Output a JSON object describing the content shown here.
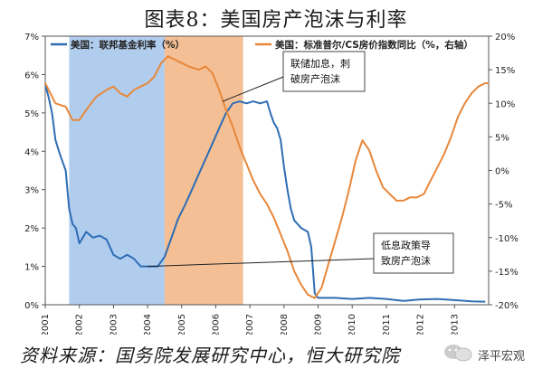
{
  "title": "图表8：美国房产泡沫与利率",
  "footer": "资料来源：国务院发展研究中心，恒大研究院",
  "watermark": "泽平宏观",
  "chart_data": {
    "type": "line",
    "legend": [
      {
        "name": "美国：联邦基金利率（%）",
        "color": "#2e6db4",
        "axis": "left"
      },
      {
        "name": "美国：标准普尔/CS房价指数同比（%，右轴）",
        "color": "#e8873a",
        "axis": "right"
      }
    ],
    "x_ticks": [
      "2001",
      "2002",
      "2003",
      "2004",
      "2005",
      "2006",
      "2007",
      "2008",
      "2009",
      "2010",
      "2011",
      "2012",
      "2013"
    ],
    "left_ticks": [
      "0%",
      "1%",
      "2%",
      "3%",
      "4%",
      "5%",
      "6%",
      "7%"
    ],
    "right_ticks": [
      "-20%",
      "-15%",
      "-10%",
      "-5%",
      "0%",
      "5%",
      "10%",
      "15%",
      "20%"
    ],
    "left_range": [
      0,
      7
    ],
    "right_range": [
      -20,
      20
    ],
    "x_range": [
      2001.0,
      2014.0
    ],
    "shaded_regions": [
      {
        "from": 2001.7,
        "to": 2004.5,
        "color": "#a9c8ec"
      },
      {
        "from": 2004.5,
        "to": 2006.8,
        "color": "#f3b888"
      }
    ],
    "annotations": [
      {
        "lines": [
          "联储加息，刺",
          "破房产泡沫"
        ],
        "x": 2006.2,
        "y_left": 5.3
      },
      {
        "lines": [
          "低息政策导",
          "致房产泡沫"
        ],
        "x": 2004.0,
        "y_left": 1.0
      }
    ],
    "series": [
      {
        "name": "美国：联邦基金利率（%）",
        "axis": "left",
        "points": [
          [
            2001.0,
            5.75
          ],
          [
            2001.1,
            5.4
          ],
          [
            2001.2,
            5.0
          ],
          [
            2001.3,
            4.3
          ],
          [
            2001.4,
            4.0
          ],
          [
            2001.5,
            3.75
          ],
          [
            2001.6,
            3.5
          ],
          [
            2001.7,
            2.5
          ],
          [
            2001.8,
            2.1
          ],
          [
            2001.9,
            2.0
          ],
          [
            2002.0,
            1.6
          ],
          [
            2002.1,
            1.75
          ],
          [
            2002.2,
            1.9
          ],
          [
            2002.4,
            1.75
          ],
          [
            2002.6,
            1.8
          ],
          [
            2002.8,
            1.7
          ],
          [
            2003.0,
            1.3
          ],
          [
            2003.2,
            1.2
          ],
          [
            2003.4,
            1.3
          ],
          [
            2003.6,
            1.2
          ],
          [
            2003.8,
            1.0
          ],
          [
            2004.0,
            1.0
          ],
          [
            2004.3,
            1.0
          ],
          [
            2004.5,
            1.25
          ],
          [
            2004.7,
            1.75
          ],
          [
            2004.9,
            2.25
          ],
          [
            2005.1,
            2.6
          ],
          [
            2005.3,
            3.0
          ],
          [
            2005.5,
            3.4
          ],
          [
            2005.7,
            3.8
          ],
          [
            2005.9,
            4.2
          ],
          [
            2006.1,
            4.6
          ],
          [
            2006.3,
            5.0
          ],
          [
            2006.5,
            5.25
          ],
          [
            2006.7,
            5.3
          ],
          [
            2006.9,
            5.25
          ],
          [
            2007.1,
            5.3
          ],
          [
            2007.3,
            5.25
          ],
          [
            2007.5,
            5.3
          ],
          [
            2007.6,
            5.0
          ],
          [
            2007.7,
            4.75
          ],
          [
            2007.8,
            4.6
          ],
          [
            2007.9,
            4.3
          ],
          [
            2008.0,
            3.6
          ],
          [
            2008.1,
            3.0
          ],
          [
            2008.2,
            2.5
          ],
          [
            2008.3,
            2.2
          ],
          [
            2008.5,
            2.0
          ],
          [
            2008.7,
            1.9
          ],
          [
            2008.8,
            1.5
          ],
          [
            2008.9,
            0.3
          ],
          [
            2009.0,
            0.18
          ],
          [
            2009.5,
            0.18
          ],
          [
            2010.0,
            0.15
          ],
          [
            2010.5,
            0.18
          ],
          [
            2011.0,
            0.15
          ],
          [
            2011.5,
            0.1
          ],
          [
            2012.0,
            0.14
          ],
          [
            2012.5,
            0.15
          ],
          [
            2013.0,
            0.12
          ],
          [
            2013.5,
            0.09
          ],
          [
            2013.9,
            0.08
          ]
        ]
      },
      {
        "name": "美国：标准普尔/CS房价指数同比（%，右轴）",
        "axis": "right",
        "points": [
          [
            2001.0,
            13
          ],
          [
            2001.3,
            10
          ],
          [
            2001.6,
            9.5
          ],
          [
            2001.8,
            7.5
          ],
          [
            2002.0,
            7.5
          ],
          [
            2002.2,
            9
          ],
          [
            2002.5,
            11
          ],
          [
            2002.8,
            12
          ],
          [
            2003.0,
            12.5
          ],
          [
            2003.2,
            11.5
          ],
          [
            2003.4,
            11
          ],
          [
            2003.6,
            12
          ],
          [
            2003.8,
            12.5
          ],
          [
            2004.0,
            13
          ],
          [
            2004.2,
            14
          ],
          [
            2004.4,
            16
          ],
          [
            2004.6,
            17
          ],
          [
            2004.8,
            16.5
          ],
          [
            2005.0,
            16
          ],
          [
            2005.2,
            15.5
          ],
          [
            2005.5,
            15
          ],
          [
            2005.7,
            15.5
          ],
          [
            2005.9,
            14.5
          ],
          [
            2006.1,
            12
          ],
          [
            2006.3,
            9
          ],
          [
            2006.5,
            6.5
          ],
          [
            2006.7,
            3.5
          ],
          [
            2006.9,
            1
          ],
          [
            2007.1,
            -1.5
          ],
          [
            2007.3,
            -3.5
          ],
          [
            2007.5,
            -5
          ],
          [
            2007.7,
            -7
          ],
          [
            2007.9,
            -9.5
          ],
          [
            2008.1,
            -12
          ],
          [
            2008.3,
            -15
          ],
          [
            2008.5,
            -17
          ],
          [
            2008.7,
            -18.5
          ],
          [
            2008.9,
            -19
          ],
          [
            2009.1,
            -17.5
          ],
          [
            2009.3,
            -14
          ],
          [
            2009.5,
            -10.5
          ],
          [
            2009.7,
            -7
          ],
          [
            2009.9,
            -3
          ],
          [
            2010.1,
            1.5
          ],
          [
            2010.3,
            4.5
          ],
          [
            2010.5,
            3
          ],
          [
            2010.7,
            0
          ],
          [
            2010.9,
            -2.5
          ],
          [
            2011.1,
            -3.5
          ],
          [
            2011.3,
            -4.5
          ],
          [
            2011.5,
            -4.5
          ],
          [
            2011.7,
            -4
          ],
          [
            2011.9,
            -4
          ],
          [
            2012.1,
            -3.5
          ],
          [
            2012.3,
            -1.5
          ],
          [
            2012.5,
            0.5
          ],
          [
            2012.7,
            2.5
          ],
          [
            2012.9,
            5
          ],
          [
            2013.1,
            8
          ],
          [
            2013.3,
            10
          ],
          [
            2013.5,
            11.5
          ],
          [
            2013.7,
            12.5
          ],
          [
            2013.9,
            13
          ],
          [
            2014.0,
            13
          ]
        ]
      }
    ]
  }
}
